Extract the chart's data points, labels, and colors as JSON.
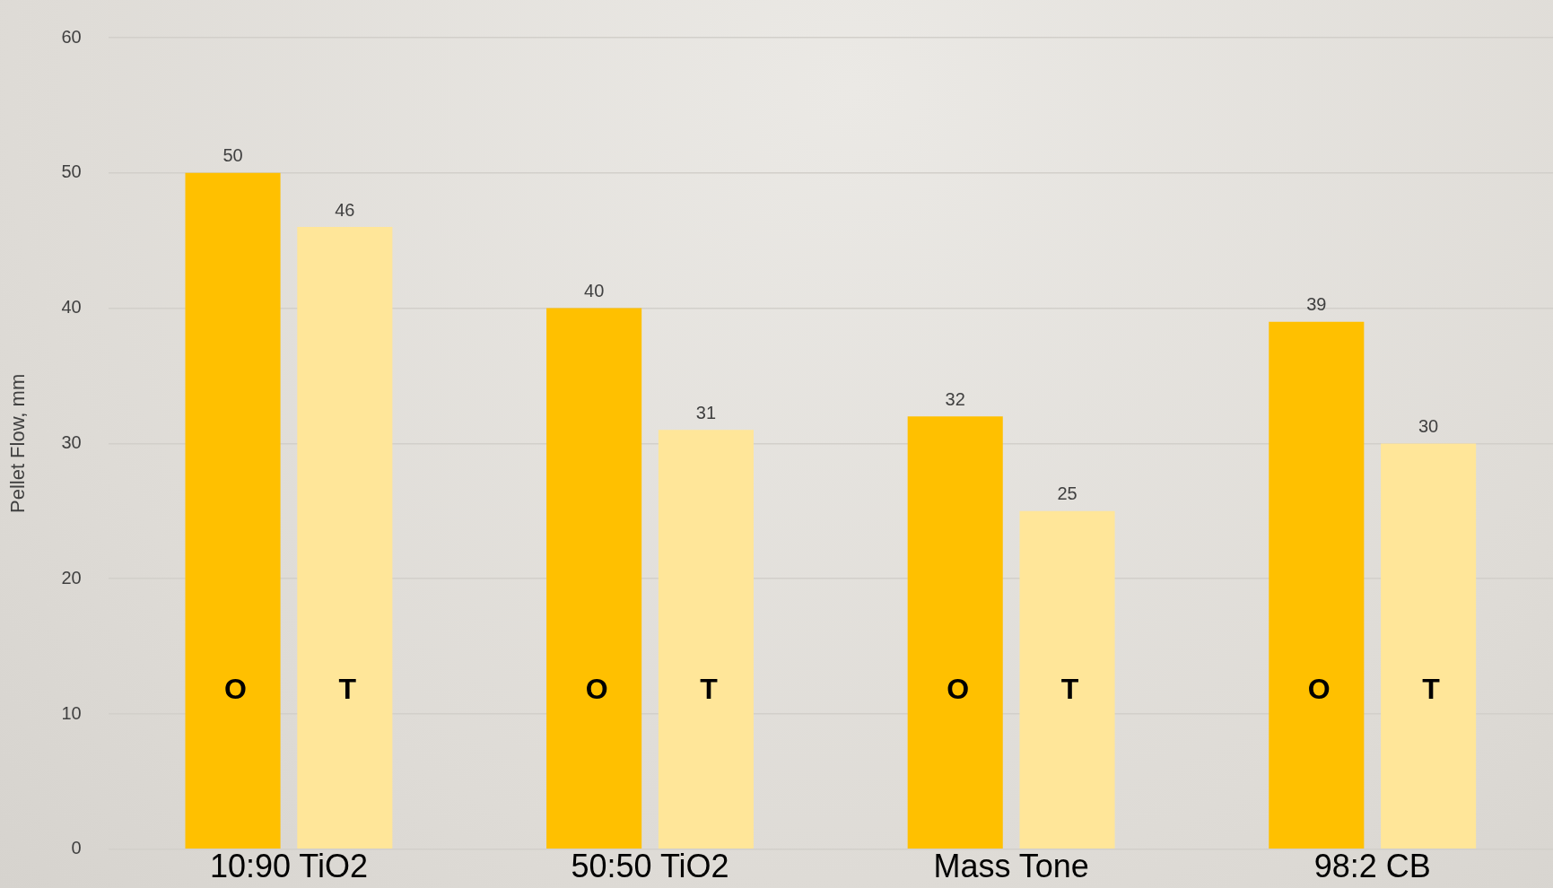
{
  "chart_data": {
    "type": "bar",
    "ylabel": "Pellet Flow, mm",
    "categories": [
      "10:90 TiO2",
      "50:50 TiO2",
      "Mass Tone",
      "98:2 CB"
    ],
    "series": [
      {
        "name": "O",
        "color": "#ffc000",
        "values": [
          50,
          40,
          32,
          39
        ]
      },
      {
        "name": "T",
        "color": "#ffe699",
        "values": [
          46,
          31,
          25,
          30
        ]
      }
    ],
    "ylim": [
      0,
      60
    ],
    "yticks": [
      0,
      10,
      20,
      30,
      40,
      50,
      60
    ],
    "grid": "y",
    "data_labels": true,
    "legend": false
  }
}
